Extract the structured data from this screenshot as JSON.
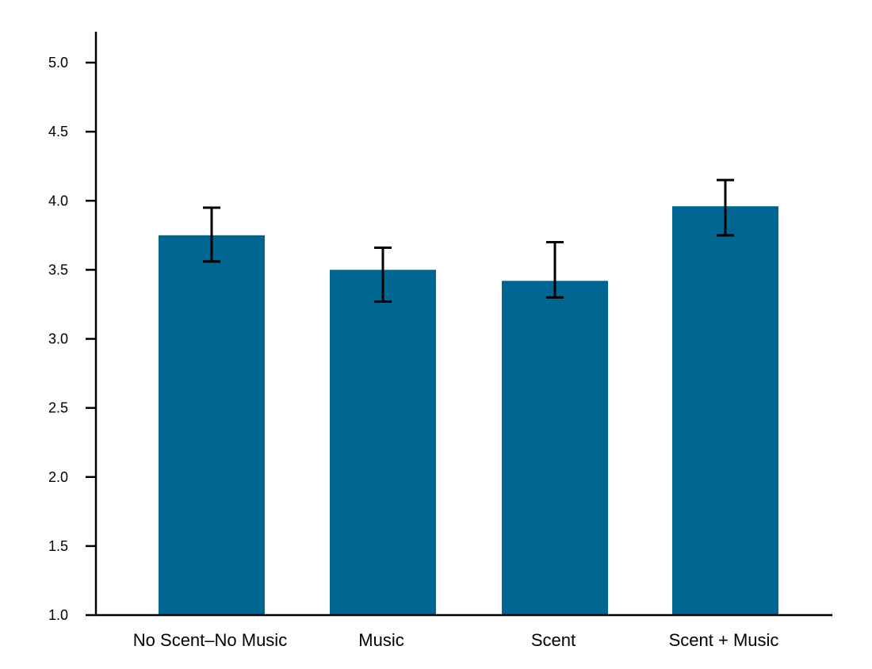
{
  "chart_data": {
    "type": "bar",
    "categories": [
      "No Scent–No Music",
      "Music",
      "Scent",
      "Scent + Music"
    ],
    "values": [
      3.75,
      3.5,
      3.42,
      3.96
    ],
    "error_low": [
      3.56,
      3.27,
      3.3,
      3.75
    ],
    "error_high": [
      3.95,
      3.66,
      3.7,
      4.15
    ],
    "ylim": [
      1.0,
      5.2
    ],
    "yticks": [
      "1.0",
      "1.5",
      "2.0",
      "2.5",
      "3.0",
      "3.5",
      "4.0",
      "4.5",
      "5.0"
    ],
    "title": "",
    "xlabel": "",
    "ylabel": "",
    "grid": false,
    "bar_color": "#006590",
    "error_bar_color": "#000000"
  }
}
